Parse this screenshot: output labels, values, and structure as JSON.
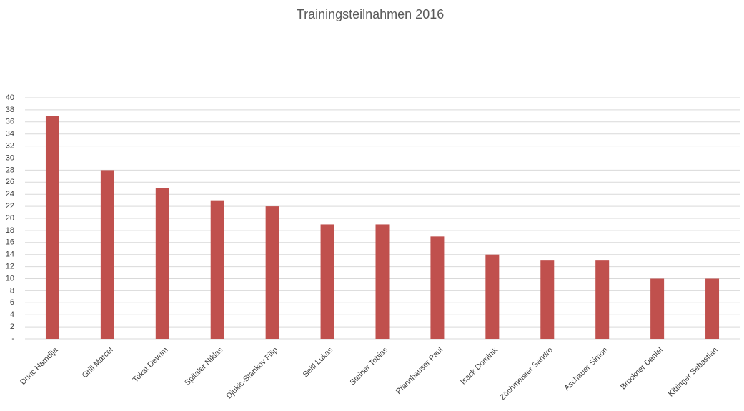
{
  "chart_data": {
    "type": "bar",
    "title": "Trainingsteilnahmen 2016",
    "categories": [
      "Duric Hamdija",
      "Grill Marcel",
      "Tokat Devrim",
      "Spitaler Niklas",
      "Djukic-Stankov Filip",
      "Seitl Lukas",
      "Steiner Tobias",
      "Pfannhauser Paul",
      "Isack Dominik",
      "Zöchmeister Sandro",
      "Aschauer Simon",
      "Bruckner Daniel",
      "Kittinger Sebastian"
    ],
    "values": [
      37,
      28,
      25,
      23,
      22,
      19,
      19,
      17,
      14,
      13,
      13,
      10,
      10
    ],
    "color": "#c0504d",
    "ylim": [
      0,
      40
    ],
    "yticks": [
      {
        "value": 0,
        "label": "-"
      },
      2,
      4,
      6,
      8,
      10,
      12,
      14,
      16,
      18,
      20,
      22,
      24,
      26,
      28,
      30,
      32,
      34,
      36,
      38,
      40
    ],
    "grid": true
  }
}
